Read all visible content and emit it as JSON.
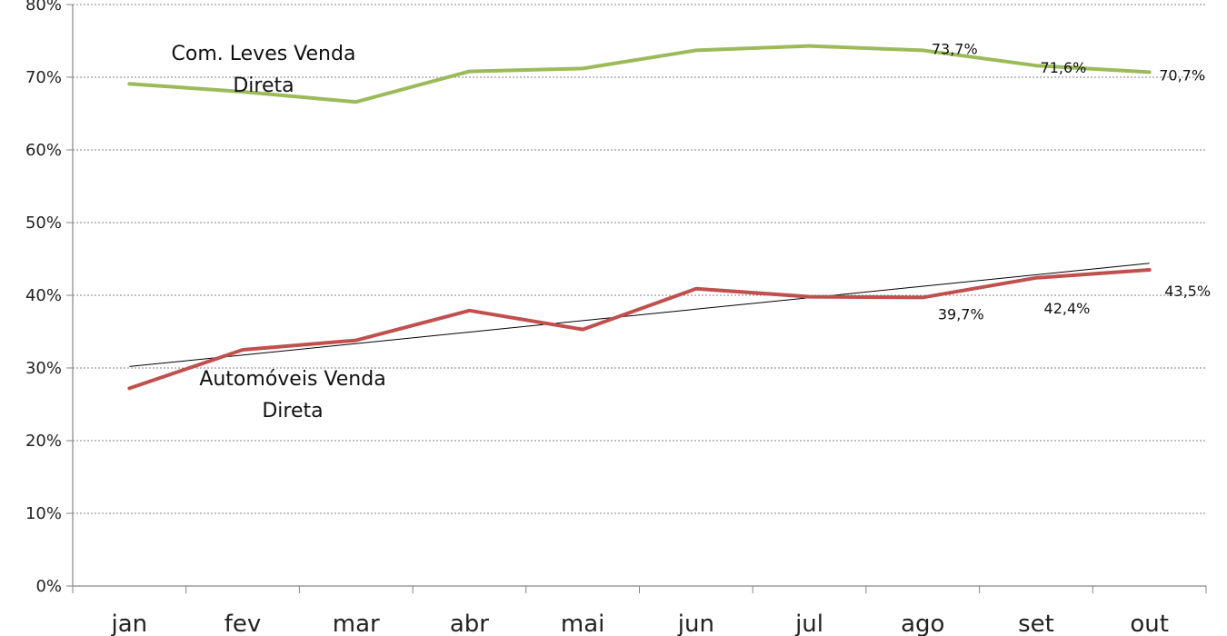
{
  "chart_data": {
    "type": "line",
    "categories": [
      "jan",
      "fev",
      "mar",
      "abr",
      "mai",
      "jun",
      "jul",
      "ago",
      "set",
      "out"
    ],
    "ylim": [
      0,
      80
    ],
    "y_ticks": [
      "0%",
      "10%",
      "20%",
      "30%",
      "40%",
      "50%",
      "60%",
      "70%",
      "80%"
    ],
    "grid": true,
    "legend": "none",
    "colors": {
      "com_leves": "#9BBB59",
      "automoveis": "#C0504D",
      "trend": "#000000",
      "grid": "#808080",
      "axis": "#868686"
    },
    "series": [
      {
        "name_lines": [
          "Com. Leves Venda",
          "Direta"
        ],
        "values": [
          69.1,
          68.0,
          66.6,
          70.8,
          71.2,
          73.7,
          74.3,
          73.7,
          71.6,
          70.7
        ],
        "labels": [
          null,
          null,
          null,
          null,
          null,
          null,
          null,
          "73,7%",
          "71,6%",
          "70,7%"
        ]
      },
      {
        "name_lines": [
          "Automóveis Venda",
          "Direta"
        ],
        "values": [
          27.2,
          32.5,
          33.8,
          37.9,
          35.3,
          40.9,
          39.8,
          39.7,
          42.4,
          43.5
        ],
        "labels": [
          null,
          null,
          null,
          null,
          null,
          null,
          null,
          "39,7%",
          "42,4%",
          "43,5%"
        ],
        "trendline": {
          "start": 30.2,
          "end": 44.4
        }
      }
    ]
  }
}
